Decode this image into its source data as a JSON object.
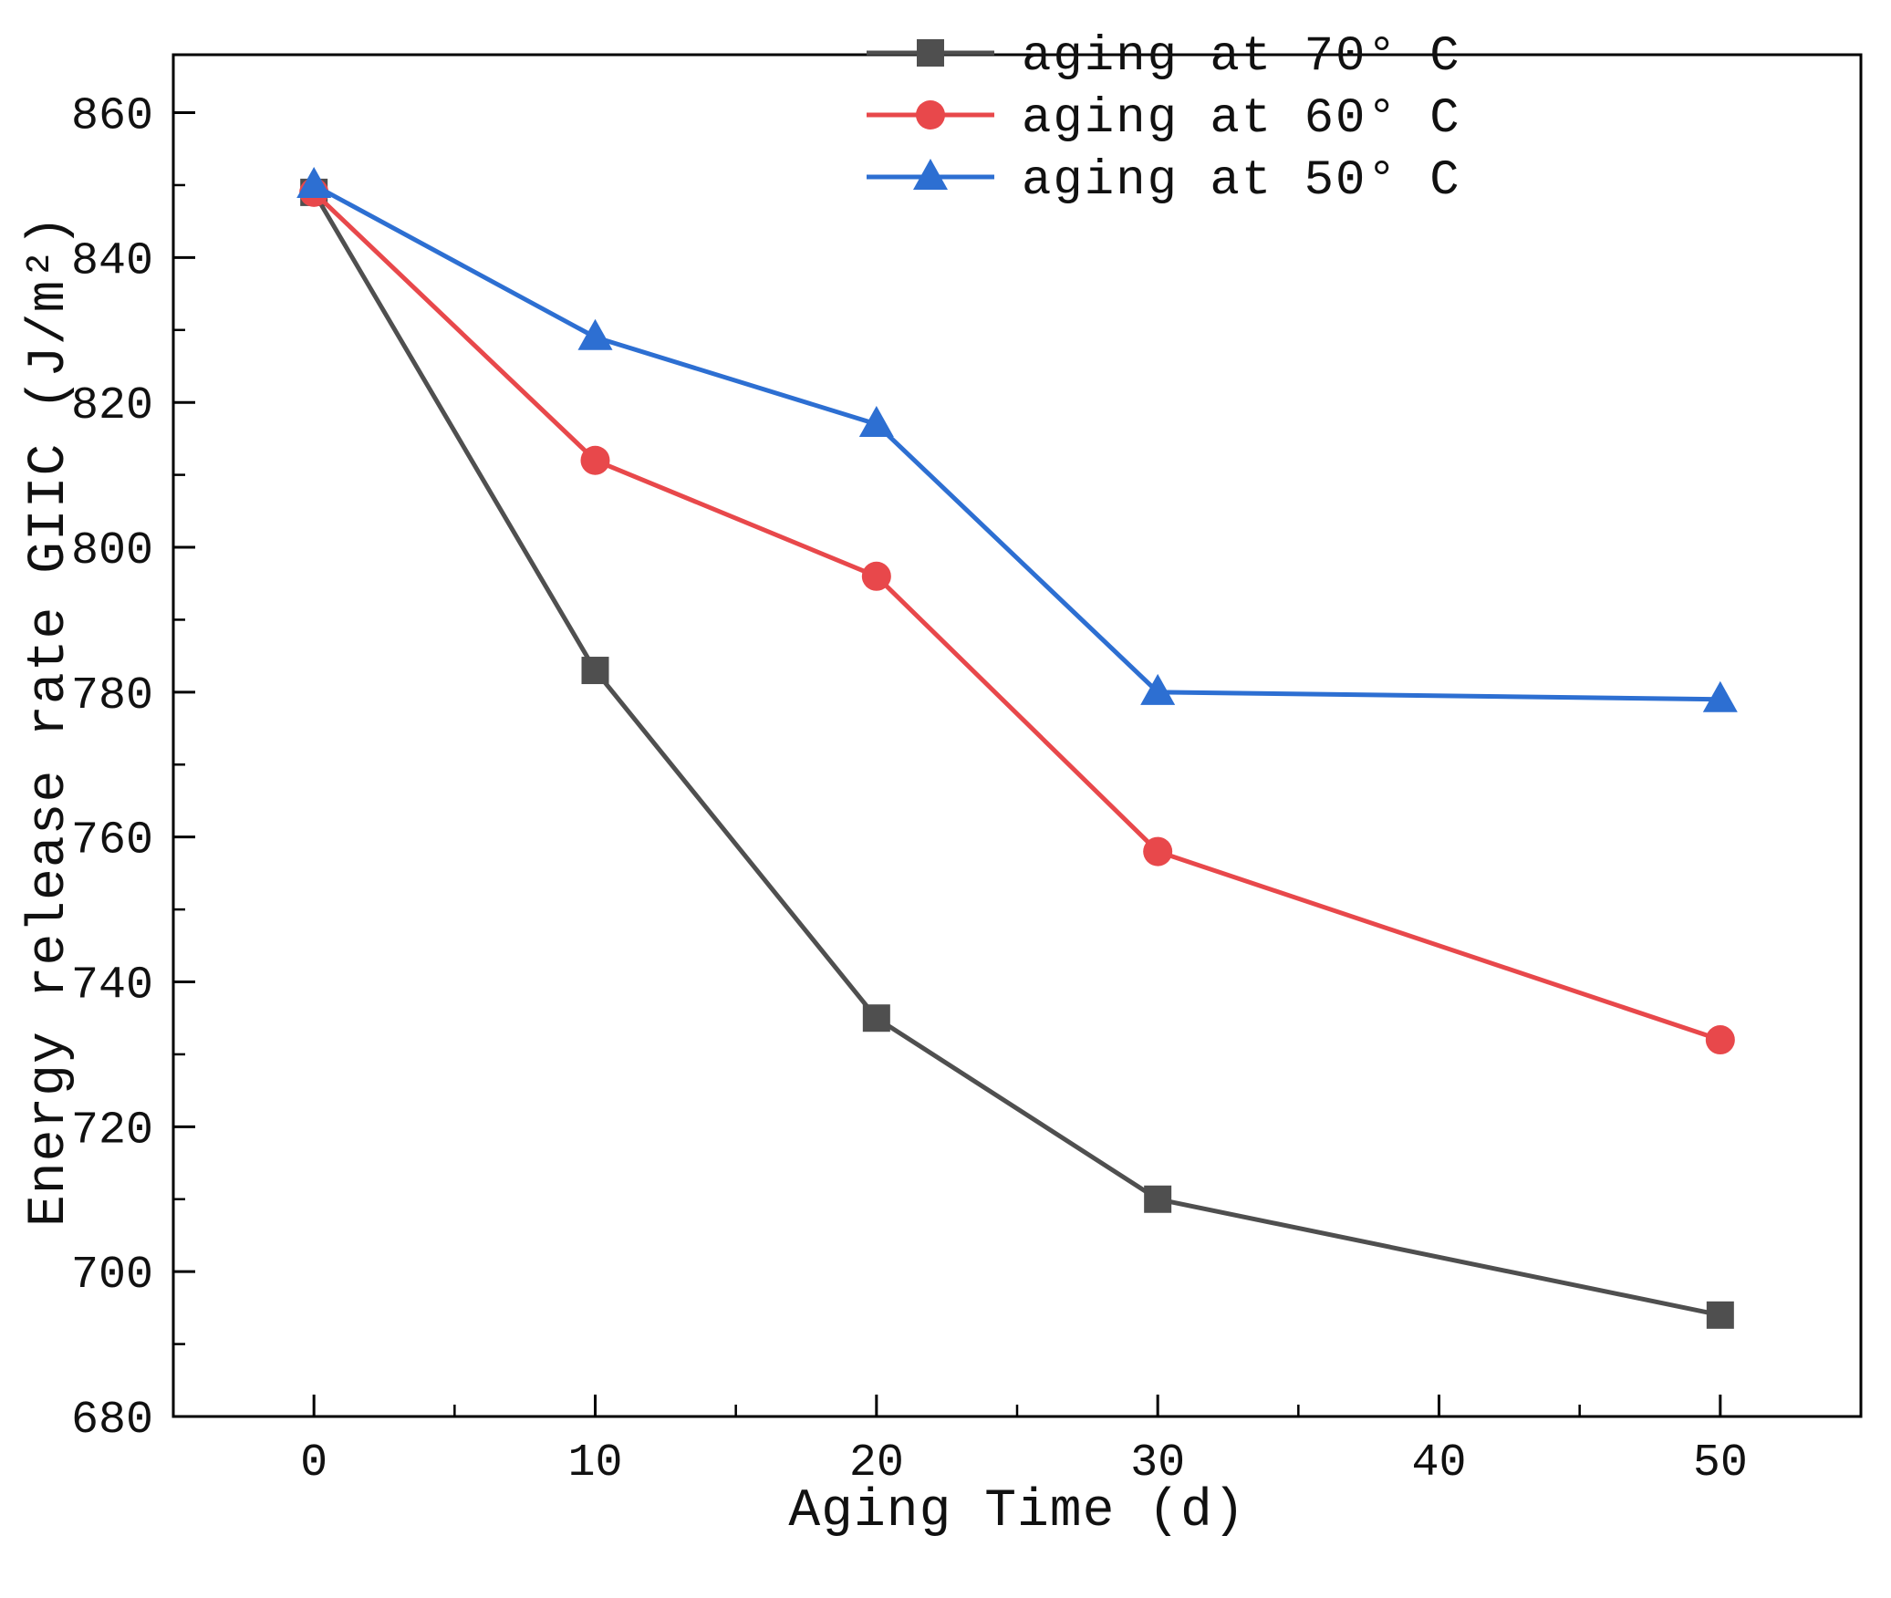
{
  "chart_data": {
    "type": "line",
    "title": "",
    "xlabel": "Aging Time (d)",
    "ylabel": "Energy release rate GIIC (J/m²)",
    "x": [
      0,
      10,
      20,
      30,
      50
    ],
    "series": [
      {
        "name": "aging at 70° C",
        "color": "#4f4f4f",
        "marker": "square",
        "values": [
          849,
          783,
          735,
          710,
          694
        ]
      },
      {
        "name": "aging at 60° C",
        "color": "#e8484b",
        "marker": "circle",
        "values": [
          849,
          812,
          796,
          758,
          732
        ]
      },
      {
        "name": "aging at 50° C",
        "color": "#2d6fd2",
        "marker": "triangle",
        "values": [
          850,
          829,
          817,
          780,
          779
        ]
      }
    ],
    "xlim": [
      -5,
      55
    ],
    "ylim": [
      680,
      868
    ],
    "x_ticks": [
      0,
      10,
      20,
      30,
      40,
      50
    ],
    "y_ticks": [
      680,
      700,
      720,
      740,
      760,
      780,
      800,
      820,
      840,
      860
    ],
    "x_minor_step": 5,
    "y_minor_step": 10,
    "grid": false,
    "legend_position": "top-right",
    "axis_color": "#000000"
  }
}
